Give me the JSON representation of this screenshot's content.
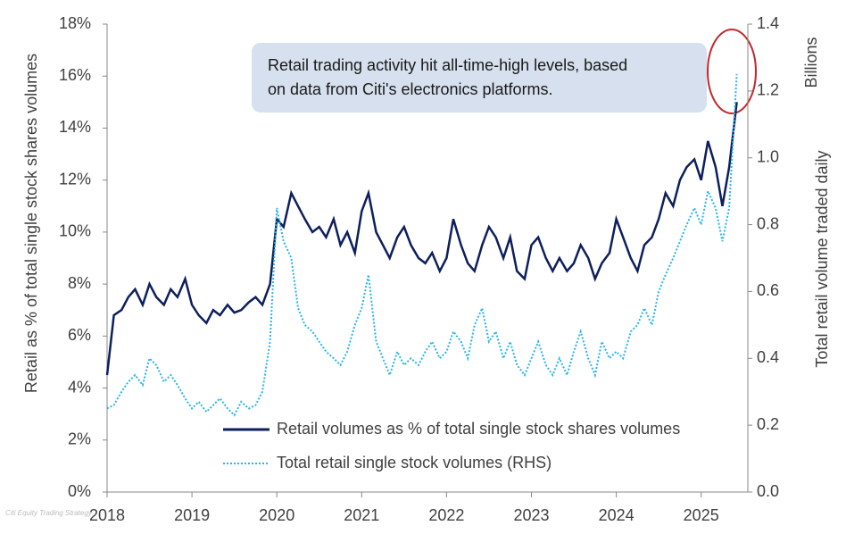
{
  "chart_data": {
    "type": "line",
    "y_label": "Retail as % of total single stock shares volumes",
    "y2_label": "Total retail volume traded daily",
    "y2_unit": "Billions",
    "annotation": [
      "Retail trading activity hit all-time-high levels, based",
      "on data from Citi's electronics platforms."
    ],
    "watermark": "Citi Equity Trading Strategy",
    "xlim": [
      2018,
      2025.55
    ],
    "xticks": [
      2018,
      2019,
      2020,
      2021,
      2022,
      2023,
      2024,
      2025
    ],
    "ylim": [
      0,
      18
    ],
    "yticks": [
      {
        "value": 0,
        "label": "0%"
      },
      {
        "value": 2,
        "label": "2%"
      },
      {
        "value": 4,
        "label": "4%"
      },
      {
        "value": 6,
        "label": "6%"
      },
      {
        "value": 8,
        "label": "8%"
      },
      {
        "value": 10,
        "label": "10%"
      },
      {
        "value": 12,
        "label": "12%"
      },
      {
        "value": 14,
        "label": "14%"
      },
      {
        "value": 16,
        "label": "16%"
      },
      {
        "value": 18,
        "label": "18%"
      }
    ],
    "y2lim": [
      0,
      1.4
    ],
    "y2ticks": [
      {
        "value": 0,
        "label": "0.0"
      },
      {
        "value": 0.2,
        "label": "0.2"
      },
      {
        "value": 0.4,
        "label": "0.4"
      },
      {
        "value": 0.6,
        "label": "0.6"
      },
      {
        "value": 0.8,
        "label": "0.8"
      },
      {
        "value": 1.0,
        "label": "1.0"
      },
      {
        "value": 1.2,
        "label": "1.2"
      },
      {
        "value": 1.4,
        "label": "1.4"
      }
    ],
    "x": [
      2018.0,
      2018.08,
      2018.17,
      2018.25,
      2018.33,
      2018.42,
      2018.5,
      2018.58,
      2018.67,
      2018.75,
      2018.83,
      2018.92,
      2019.0,
      2019.08,
      2019.17,
      2019.25,
      2019.33,
      2019.42,
      2019.5,
      2019.58,
      2019.67,
      2019.75,
      2019.83,
      2019.92,
      2020.0,
      2020.08,
      2020.17,
      2020.25,
      2020.33,
      2020.42,
      2020.5,
      2020.58,
      2020.67,
      2020.75,
      2020.83,
      2020.92,
      2021.0,
      2021.08,
      2021.17,
      2021.25,
      2021.33,
      2021.42,
      2021.5,
      2021.58,
      2021.67,
      2021.75,
      2021.83,
      2021.92,
      2022.0,
      2022.08,
      2022.17,
      2022.25,
      2022.33,
      2022.42,
      2022.5,
      2022.58,
      2022.67,
      2022.75,
      2022.83,
      2022.92,
      2023.0,
      2023.08,
      2023.17,
      2023.25,
      2023.33,
      2023.42,
      2023.5,
      2023.58,
      2023.67,
      2023.75,
      2023.83,
      2023.92,
      2024.0,
      2024.08,
      2024.17,
      2024.25,
      2024.33,
      2024.42,
      2024.5,
      2024.58,
      2024.67,
      2024.75,
      2024.83,
      2024.92,
      2025.0,
      2025.08,
      2025.17,
      2025.25,
      2025.33,
      2025.42
    ],
    "series": [
      {
        "name": "Retail volumes as % of total single stock shares volumes",
        "color": "#0d1f5c",
        "style": "solid",
        "values": [
          4.5,
          6.8,
          7.0,
          7.5,
          7.8,
          7.2,
          8.0,
          7.5,
          7.2,
          7.8,
          7.5,
          8.2,
          7.2,
          6.8,
          6.5,
          7.0,
          6.8,
          7.2,
          6.9,
          7.0,
          7.3,
          7.5,
          7.2,
          8.0,
          10.5,
          10.2,
          11.5,
          11.0,
          10.5,
          10.0,
          10.2,
          9.8,
          10.5,
          9.5,
          10.0,
          9.2,
          10.8,
          11.5,
          10.0,
          9.5,
          9.0,
          9.8,
          10.2,
          9.5,
          9.0,
          8.8,
          9.2,
          8.5,
          9.0,
          10.5,
          9.5,
          8.8,
          8.5,
          9.5,
          10.2,
          9.8,
          9.0,
          9.8,
          8.5,
          8.2,
          9.5,
          9.8,
          9.0,
          8.5,
          9.0,
          8.5,
          8.8,
          9.5,
          9.0,
          8.2,
          8.8,
          9.2,
          10.5,
          9.8,
          9.0,
          8.5,
          9.5,
          9.8,
          10.5,
          11.5,
          11.0,
          12.0,
          12.5,
          12.8,
          12.0,
          13.5,
          12.5,
          11.0,
          12.5,
          15.0
        ]
      },
      {
        "name": "Total retail single stock volumes (RHS)",
        "color": "#29b5e8",
        "style": "dotted",
        "axis": "y2",
        "values": [
          0.25,
          0.26,
          0.3,
          0.33,
          0.35,
          0.32,
          0.4,
          0.38,
          0.33,
          0.35,
          0.32,
          0.28,
          0.25,
          0.27,
          0.24,
          0.26,
          0.28,
          0.25,
          0.23,
          0.27,
          0.25,
          0.26,
          0.3,
          0.45,
          0.85,
          0.75,
          0.7,
          0.55,
          0.5,
          0.48,
          0.45,
          0.42,
          0.4,
          0.38,
          0.42,
          0.5,
          0.55,
          0.65,
          0.45,
          0.4,
          0.35,
          0.42,
          0.38,
          0.4,
          0.38,
          0.42,
          0.45,
          0.4,
          0.42,
          0.48,
          0.45,
          0.4,
          0.5,
          0.55,
          0.45,
          0.48,
          0.4,
          0.45,
          0.38,
          0.35,
          0.4,
          0.45,
          0.38,
          0.35,
          0.4,
          0.35,
          0.42,
          0.48,
          0.4,
          0.35,
          0.45,
          0.4,
          0.42,
          0.4,
          0.48,
          0.5,
          0.55,
          0.5,
          0.6,
          0.65,
          0.7,
          0.75,
          0.8,
          0.85,
          0.8,
          0.9,
          0.85,
          0.75,
          0.85,
          1.25
        ]
      }
    ]
  }
}
